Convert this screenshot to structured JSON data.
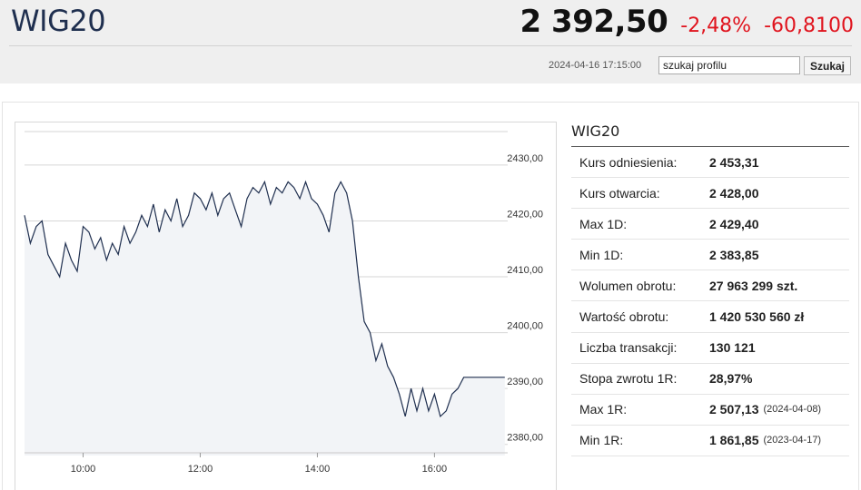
{
  "header": {
    "symbol": "WIG20",
    "price": "2 392,50",
    "change_pct": "-2,48%",
    "change_abs": "-60,8100",
    "timestamp": "2024-04-16 17:15:00",
    "change_color": "#e0141e"
  },
  "search": {
    "value": "szukaj profilu",
    "button_label": "Szukaj"
  },
  "stats": {
    "title": "WIG20",
    "rows": [
      {
        "label": "Kurs odniesienia:",
        "value": "2 453,31",
        "date": ""
      },
      {
        "label": "Kurs otwarcia:",
        "value": "2 428,00",
        "date": ""
      },
      {
        "label": "Max 1D:",
        "value": "2 429,40",
        "date": ""
      },
      {
        "label": "Min 1D:",
        "value": "2 383,85",
        "date": ""
      },
      {
        "label": "Wolumen obrotu:",
        "value": "27 963 299 szt.",
        "date": ""
      },
      {
        "label": "Wartość obrotu:",
        "value": "1 420 530 560 zł",
        "date": ""
      },
      {
        "label": "Liczba transakcji:",
        "value": "130 121",
        "date": ""
      },
      {
        "label": "Stopa zwrotu 1R:",
        "value": "28,97%",
        "date": ""
      },
      {
        "label": "Max 1R:",
        "value": "2 507,13",
        "date": "(2024-04-08)"
      },
      {
        "label": "Min 1R:",
        "value": "1 861,85",
        "date": "(2023-04-17)"
      }
    ]
  },
  "chart_data": {
    "type": "area",
    "title": "",
    "xlabel": "",
    "ylabel": "",
    "x_ticks": [
      "10:00",
      "12:00",
      "14:00",
      "16:00"
    ],
    "x_tick_hours": [
      10,
      12,
      14,
      16
    ],
    "y_ticks": [
      "2380,00",
      "2390,00",
      "2400,00",
      "2410,00",
      "2420,00",
      "2430,00"
    ],
    "y_tick_values": [
      2380,
      2390,
      2400,
      2410,
      2420,
      2430
    ],
    "xlim_hours": [
      9.0,
      17.25
    ],
    "ylim": [
      2378,
      2436
    ],
    "grid": true,
    "line_color": "#1f2f4f",
    "fill_color": "#f2f4f7",
    "series": [
      {
        "x_hours": [
          9.0,
          9.1,
          9.2,
          9.3,
          9.4,
          9.5,
          9.6,
          9.7,
          9.8,
          9.9,
          10.0,
          10.1,
          10.2,
          10.3,
          10.4,
          10.5,
          10.6,
          10.7,
          10.8,
          10.9,
          11.0,
          11.1,
          11.2,
          11.3,
          11.4,
          11.5,
          11.6,
          11.7,
          11.8,
          11.9,
          12.0,
          12.1,
          12.2,
          12.3,
          12.4,
          12.5,
          12.6,
          12.7,
          12.8,
          12.9,
          13.0,
          13.1,
          13.2,
          13.3,
          13.4,
          13.5,
          13.6,
          13.7,
          13.8,
          13.9,
          14.0,
          14.1,
          14.2,
          14.3,
          14.4,
          14.5,
          14.6,
          14.7,
          14.8,
          14.9,
          15.0,
          15.1,
          15.2,
          15.3,
          15.4,
          15.5,
          15.6,
          15.7,
          15.8,
          15.9,
          16.0,
          16.1,
          16.2,
          16.3,
          16.4,
          16.5,
          16.6,
          16.7,
          16.8,
          16.9,
          17.0,
          17.1,
          17.2
        ],
        "values": [
          2421,
          2416,
          2419,
          2420,
          2414,
          2412,
          2410,
          2416,
          2413,
          2411,
          2419,
          2418,
          2415,
          2417,
          2413,
          2416,
          2414,
          2419,
          2416,
          2418,
          2421,
          2419,
          2423,
          2418,
          2422,
          2420,
          2424,
          2419,
          2421,
          2425,
          2424,
          2422,
          2425,
          2421,
          2424,
          2425,
          2422,
          2419,
          2424,
          2426,
          2425,
          2427,
          2423,
          2426,
          2425,
          2427,
          2426,
          2424,
          2427,
          2424,
          2423,
          2421,
          2418,
          2425,
          2427,
          2425,
          2420,
          2410,
          2402,
          2400,
          2395,
          2398,
          2394,
          2392,
          2389,
          2385,
          2390,
          2386,
          2390,
          2386,
          2389,
          2385,
          2386,
          2389,
          2390,
          2392,
          2392,
          2392,
          2392,
          2392,
          2392,
          2392,
          2392
        ]
      }
    ]
  }
}
